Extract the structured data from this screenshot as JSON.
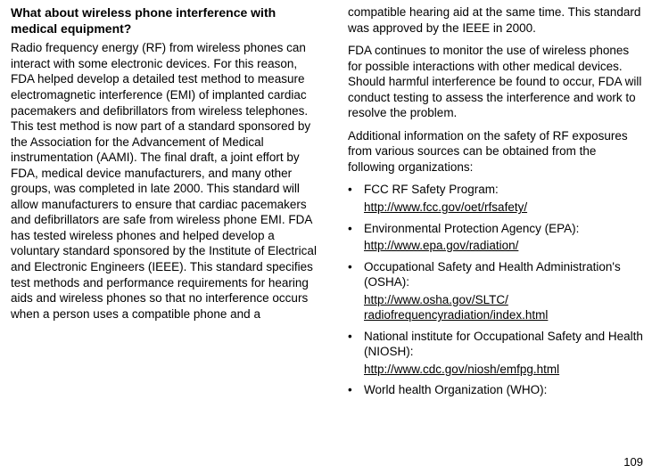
{
  "page_number": "109",
  "left": {
    "heading": "What about wireless phone interference with medical equipment?",
    "body": "Radio frequency energy (RF) from wireless phones can interact with some electronic devices. For this reason, FDA helped develop a detailed test method to measure electromagnetic interference (EMI) of implanted cardiac pacemakers and defibrillators from wireless telephones. This test method is now part of a standard sponsored by the Association for the Advancement of Medical instrumentation (AAMI). The final draft, a joint effort by FDA, medical device manufacturers, and many other groups, was completed in late 2000. This standard will allow manufacturers to ensure that cardiac pacemakers and defibrillators are safe from wireless phone EMI. FDA has tested wireless phones and helped develop a voluntary standard sponsored by the Institute of Electrical and Electronic Engineers (IEEE). This standard specifies test methods and performance requirements for hearing aids and wireless phones so that no interference occurs when a person uses a compatible phone and a"
  },
  "right": {
    "p1": "compatible hearing aid at the same time. This standard was approved by the IEEE in 2000.",
    "p2": "FDA continues to monitor the use of wireless phones for possible interactions with other medical devices. Should harmful interference be found to occur, FDA will conduct testing to assess the interference and work to resolve the problem.",
    "p3": "Additional information on the safety of RF exposures from various sources can be obtained from the following organizations:",
    "items": [
      {
        "label": "FCC RF Safety Program:",
        "link": "http://www.fcc.gov/oet/rfsafety/"
      },
      {
        "label": "Environmental Protection Agency (EPA):",
        "link": "http://www.epa.gov/radiation/"
      },
      {
        "label": "Occupational Safety and Health Administration's (OSHA):",
        "link": "http://www.osha.gov/SLTC/ radiofrequencyradiation/index.html"
      },
      {
        "label": "National institute for Occupational Safety and Health (NIOSH):",
        "link": "http://www.cdc.gov/niosh/emfpg.html "
      },
      {
        "label": "World health Organization (WHO):",
        "link": ""
      }
    ]
  }
}
